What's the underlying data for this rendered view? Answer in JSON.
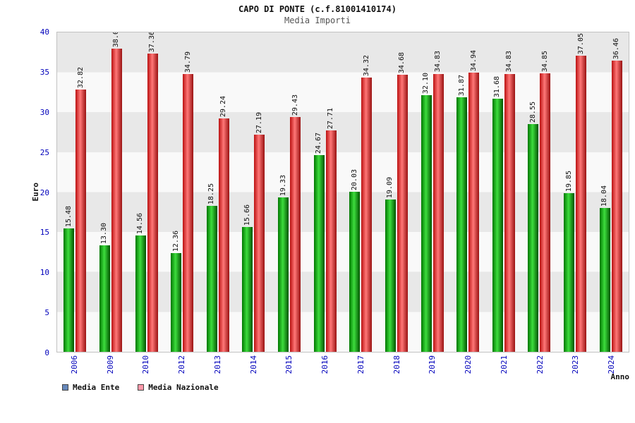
{
  "chart_data": {
    "type": "bar",
    "title": "CAPO DI PONTE (c.f.81001410174)",
    "subtitle": "Media Importi",
    "xlabel": "Anno",
    "ylabel": "Euro",
    "ylim": [
      0,
      40
    ],
    "ytick_step": 5,
    "grid": "banded",
    "legend_position": "bottom-left",
    "categories": [
      "2006",
      "2009",
      "2010",
      "2012",
      "2013",
      "2014",
      "2015",
      "2016",
      "2017",
      "2018",
      "2019",
      "2020",
      "2021",
      "2022",
      "2023",
      "2024"
    ],
    "series": [
      {
        "name": "Media Ente",
        "bar_gradient": [
          "#007700",
          "#3ddd3d",
          "#005500"
        ],
        "legend_color": "#6688bb",
        "values": [
          15.48,
          13.3,
          14.56,
          12.36,
          18.25,
          15.66,
          19.33,
          24.67,
          20.03,
          19.09,
          32.1,
          31.87,
          31.68,
          28.55,
          19.85,
          18.04
        ]
      },
      {
        "name": "Media Nazionale",
        "bar_gradient": [
          "#bb1111",
          "#ff7777",
          "#991111"
        ],
        "legend_color": "#ff99aa",
        "values": [
          32.82,
          38.0,
          37.36,
          34.79,
          29.24,
          27.19,
          29.43,
          27.71,
          34.32,
          34.68,
          34.83,
          34.94,
          34.83,
          34.85,
          37.05,
          36.46
        ]
      }
    ],
    "colors": {
      "tick_label": "#0000bb",
      "category_label": "#0000bb",
      "band_gray": "#e8e8e8",
      "band_light": "#f9f9f9"
    }
  }
}
